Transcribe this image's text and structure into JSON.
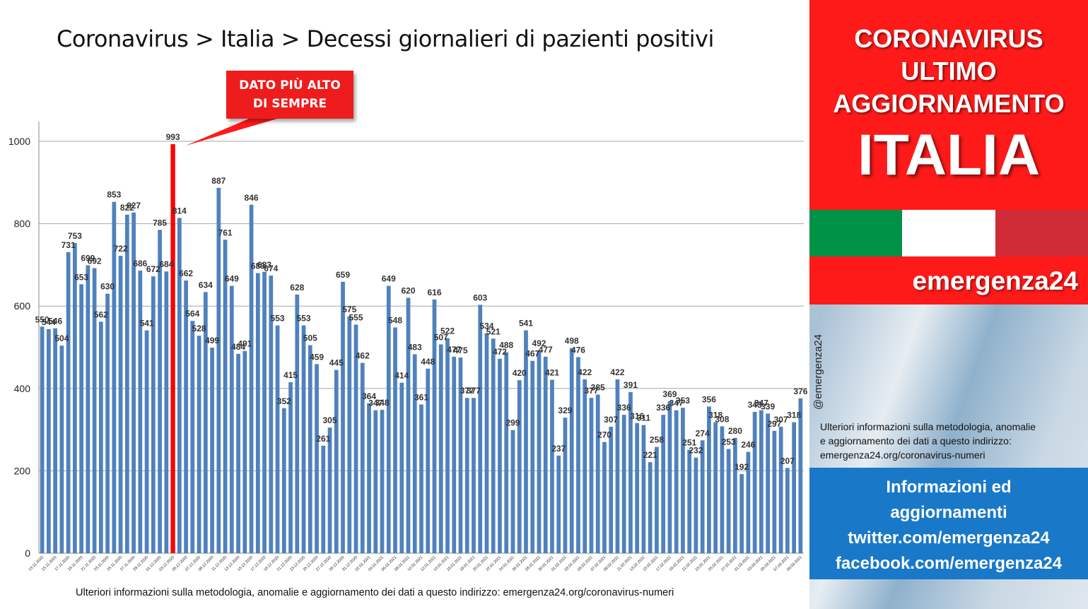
{
  "title": "Coronavirus > Italia > Decessi giornalieri di pazienti positivi",
  "callout": {
    "line1": "DATO PIÙ ALTO",
    "line2": "DI SEMPRE"
  },
  "footnote": "Ulteriori informazioni sulla metodologia, anomalie e aggiornamento dei dati a questo indirizzo: emergenza24.org/coronavirus-numeri",
  "side": {
    "header_line1": "CORONAVIRUS",
    "header_line2": "ULTIMO",
    "header_line3": "AGGIORNAMENTO",
    "header_big": "ITALIA",
    "brand": "emergenza24",
    "handle": "@emergenza24",
    "info_line1": "Ulteriori informazioni sulla metodologia, anomalie",
    "info_line2": "e aggiornamento dei dati a questo indirizzo:",
    "info_line3": "emergenza24.org/coronavirus-numeri",
    "blue_line1": "Informazioni ed",
    "blue_line2": "aggiornamenti",
    "blue_line3": "twitter.com/emergenza24",
    "blue_line4": "facebook.com/emergenza24"
  },
  "colors": {
    "bar": "#4f81bd",
    "highlight": "#ff0000",
    "red": "#ff1a1a",
    "flag_green": "#009246",
    "flag_white": "#ffffff",
    "flag_red": "#ce2b37",
    "blue": "#1a78c8"
  },
  "chart_data": {
    "type": "bar",
    "title": "Coronavirus > Italia > Decessi giornalieri di pazienti positivi",
    "xlabel": "",
    "ylabel": "",
    "ylim": [
      0,
      1000
    ],
    "yticks": [
      0,
      200,
      400,
      600,
      800,
      1000
    ],
    "grid": true,
    "highlight_index": 20,
    "categories": [
      "13.11.2020",
      "14.11.2020",
      "15.11.2020",
      "16.11.2020",
      "17.11.2020",
      "18.11.2020",
      "19.11.2020",
      "20.11.2020",
      "21.11.2020",
      "22.11.2020",
      "23.11.2020",
      "24.11.2020",
      "25.11.2020",
      "26.11.2020",
      "27.11.2020",
      "28.11.2020",
      "29.11.2020",
      "30.11.2020",
      "01.12.2020",
      "02.12.2020",
      "03.12.2020",
      "04.12.2020",
      "05.12.2020",
      "06.12.2020",
      "07.12.2020",
      "08.12.2020",
      "09.12.2020",
      "10.12.2020",
      "11.12.2020",
      "12.12.2020",
      "13.12.2020",
      "14.12.2020",
      "15.12.2020",
      "16.12.2020",
      "17.12.2020",
      "18.12.2020",
      "19.12.2020",
      "20.12.2020",
      "21.12.2020",
      "22.12.2020",
      "23.12.2020",
      "24.12.2020",
      "25.12.2020",
      "26.12.2020",
      "27.12.2020",
      "28.12.2020",
      "29.12.2020",
      "30.12.2020",
      "31.12.2020",
      "01.01.2021",
      "02.01.2021",
      "03.01.2021",
      "04.01.2021",
      "05.01.2021",
      "06.01.2021",
      "07.01.2021",
      "08.01.2021",
      "09.01.2021",
      "10.01.2021",
      "11.01.2021",
      "12.01.2021",
      "13.01.2021",
      "14.01.2021",
      "15.01.2021",
      "16.01.2021",
      "17.01.2021",
      "18.01.2021",
      "19.01.2021",
      "20.01.2021",
      "21.01.2021",
      "22.01.2021",
      "23.01.2021",
      "24.01.2021",
      "25.01.2021",
      "26.01.2021",
      "27.01.2021",
      "28.01.2021",
      "29.01.2021",
      "30.01.2021",
      "31.01.2021",
      "01.02.2021",
      "02.02.2021",
      "03.02.2021",
      "04.02.2021",
      "05.02.2021",
      "06.02.2021",
      "07.02.2021",
      "08.02.2021",
      "09.02.2021",
      "10.02.2021",
      "11.02.2021",
      "12.02.2021",
      "13.02.2021",
      "14.02.2021",
      "15.02.2021",
      "16.02.2021",
      "17.02.2021",
      "18.02.2021",
      "19.02.2021",
      "20.02.2021",
      "21.02.2021",
      "22.02.2021",
      "23.02.2021",
      "24.02.2021",
      "25.02.2021",
      "26.02.2021",
      "27.02.2021",
      "28.02.2021",
      "01.03.2021",
      "02.03.2021",
      "03.03.2021",
      "04.03.2021",
      "05.03.2021",
      "06.03.2021",
      "07.03.2021",
      "08.03.2021",
      "09.03.2021"
    ],
    "values": [
      550,
      544,
      546,
      504,
      731,
      753,
      653,
      699,
      692,
      562,
      630,
      853,
      722,
      822,
      827,
      686,
      541,
      672,
      785,
      684,
      993,
      814,
      662,
      564,
      528,
      634,
      499,
      887,
      761,
      649,
      484,
      491,
      846,
      680,
      683,
      674,
      553,
      352,
      415,
      628,
      553,
      505,
      459,
      261,
      305,
      445,
      659,
      575,
      555,
      462,
      364,
      347,
      348,
      649,
      548,
      414,
      620,
      483,
      361,
      448,
      616,
      507,
      522,
      477,
      475,
      377,
      377,
      603,
      534,
      521,
      472,
      488,
      299,
      420,
      541,
      467,
      492,
      477,
      421,
      237,
      329,
      498,
      476,
      422,
      377,
      385,
      270,
      307,
      422,
      336,
      391,
      316,
      311,
      221,
      258,
      336,
      369,
      347,
      353,
      251,
      232,
      274,
      356,
      318,
      308,
      253,
      280,
      192,
      246,
      343,
      347,
      339,
      297,
      307,
      207,
      318,
      376
    ]
  }
}
